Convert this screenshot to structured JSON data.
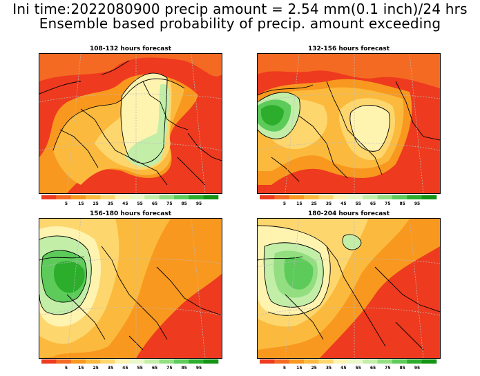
{
  "title_line1": "Ini time:2022080900 precip amount = 2.54 mm(0.1 inch)/24 hrs",
  "title_line2": "Ensemble based probability of precip. amount exceeding",
  "panels": [
    {
      "title": "108-132 hours forecast"
    },
    {
      "title": "132-156 hours forecast"
    },
    {
      "title": "156-180 hours forecast"
    },
    {
      "title": "180-204 hours forecast"
    }
  ],
  "colorbar": {
    "ticks": [
      "5",
      "15",
      "25",
      "35",
      "45",
      "55",
      "65",
      "75",
      "85",
      "95"
    ],
    "colors": [
      "#ee3a1e",
      "#f46a22",
      "#f8981f",
      "#fbba3d",
      "#fdd76e",
      "#fff3b0",
      "#e8f8c8",
      "#c3eea8",
      "#92de80",
      "#5ccb5a",
      "#2cae2c",
      "#139313"
    ]
  },
  "colors": {
    "land_low": "#ee3a1e",
    "orange": "#f8981f",
    "light_orange": "#fbba3d",
    "yellow": "#fdd76e",
    "pale": "#fff3b0",
    "light_green": "#c3eea8",
    "green": "#5ccb5a",
    "dark_green": "#2cae2c"
  }
}
